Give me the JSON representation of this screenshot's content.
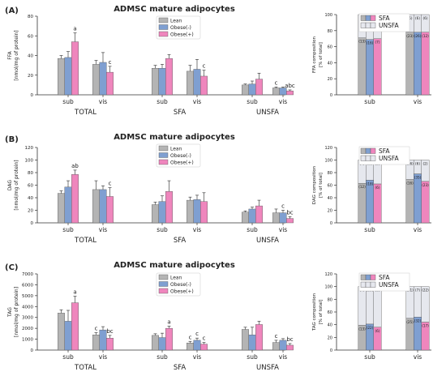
{
  "colors": {
    "lean": "#b4b4b4",
    "obese_minus": "#7f9fd1",
    "obese_plus": "#ef86bd",
    "axis": "#333333",
    "sfa_fill": "#cfd1d6",
    "unsfa_fill": "#e6e8ee"
  },
  "chart_data": [
    {
      "panel": "(A)",
      "type": "bar",
      "title": "ADMSC mature adipocytes",
      "ylabel": "FFA\n[nmol/mg of protein]",
      "ylim": [
        0,
        80
      ],
      "yticks": [
        0,
        20,
        40,
        60,
        80
      ],
      "legend": [
        "Lean",
        "Obese(-)",
        "Obese(+)"
      ],
      "legend_position": "top-center",
      "group_labels": [
        "TOTAL",
        "SFA",
        "UNSFA"
      ],
      "subgroup_labels": [
        "sub",
        "vis"
      ],
      "series": [
        {
          "name": "Lean",
          "values": [
            37,
            31,
            27,
            24,
            10,
            7
          ]
        },
        {
          "name": "Obese(-)",
          "values": [
            38,
            33,
            27,
            26,
            11,
            7
          ]
        },
        {
          "name": "Obese(+)",
          "values": [
            54,
            23,
            37,
            19,
            16,
            4
          ]
        }
      ],
      "errors": [
        [
          3,
          4,
          3,
          6,
          1,
          1
        ],
        [
          6,
          10,
          4,
          10,
          3,
          1
        ],
        [
          9,
          6,
          4,
          6,
          6,
          1
        ]
      ],
      "annotations": [
        {
          "group": 0,
          "bar": 2,
          "text": "a"
        },
        {
          "group": 1,
          "bar": 2,
          "text": "c"
        },
        {
          "group": 3,
          "bar": 2,
          "text": "c"
        },
        {
          "group": 5,
          "bar": 0,
          "text": "c"
        },
        {
          "group": 5,
          "bar": 2,
          "text": "abc"
        }
      ]
    },
    {
      "panel": "(A)",
      "type": "bar",
      "stacked": true,
      "ylabel": "FFA composition\n[% of total]",
      "ylim": [
        0,
        100
      ],
      "yticks": [
        0,
        20,
        40,
        60,
        80,
        100
      ],
      "legend": [
        "SFA",
        "UNSFA"
      ],
      "categories": [
        "sub",
        "vis"
      ],
      "sfa": [
        [
          71,
          69,
          70
        ],
        [
          78,
          78,
          78
        ]
      ],
      "labels_top": [
        [
          "(2)",
          "(6)",
          "(14)"
        ],
        [
          "(6)",
          "(6)",
          "(6)"
        ]
      ],
      "labels_bottom": [
        [
          "(13)",
          "(16)",
          "(7)"
        ],
        [
          "(23)",
          "(26)",
          "(12)"
        ]
      ]
    },
    {
      "panel": "(B)",
      "type": "bar",
      "title": "ADMSC mature adipocytes",
      "ylabel": "DAG\n[nmol/mg of protein]",
      "ylim": [
        0,
        120
      ],
      "yticks": [
        0,
        20,
        40,
        60,
        80,
        100,
        120
      ],
      "legend": [
        "Lean",
        "Obese(-)",
        "Obese(+)"
      ],
      "legend_position": "top-center",
      "group_labels": [
        "TOTAL",
        "SFA",
        "UNSFA"
      ],
      "subgroup_labels": [
        "sub",
        "vis"
      ],
      "series": [
        {
          "name": "Lean",
          "values": [
            47,
            53,
            29,
            36,
            17,
            16
          ]
        },
        {
          "name": "Obese(-)",
          "values": [
            57,
            53,
            34,
            37,
            22,
            16
          ]
        },
        {
          "name": "Obese(+)",
          "values": [
            77,
            42,
            50,
            34,
            27,
            7
          ]
        }
      ],
      "errors": [
        [
          4,
          14,
          4,
          5,
          2,
          6
        ],
        [
          10,
          6,
          9,
          7,
          3,
          4
        ],
        [
          7,
          14,
          17,
          14,
          9,
          3
        ]
      ],
      "annotations": [
        {
          "group": 0,
          "bar": 2,
          "text": "ab"
        },
        {
          "group": 1,
          "bar": 2,
          "text": "c"
        },
        {
          "group": 5,
          "bar": 1,
          "text": "c"
        },
        {
          "group": 5,
          "bar": 2,
          "text": "bc"
        }
      ]
    },
    {
      "panel": "(B)",
      "type": "bar",
      "stacked": true,
      "ylabel": "DAG composition\n[% of total]",
      "ylim": [
        0,
        120
      ],
      "yticks": [
        0,
        20,
        40,
        60,
        80,
        100,
        120
      ],
      "legend": [
        "SFA",
        "UNSFA"
      ],
      "categories": [
        "sub",
        "vis"
      ],
      "sfa": [
        [
          63,
          68,
          62
        ],
        [
          69,
          78,
          66
        ]
      ],
      "labels_top": [
        [
          "(4)",
          "(6)",
          "(3)"
        ],
        [
          "(16)",
          "(6)",
          "(2)"
        ]
      ],
      "labels_bottom": [
        [
          "(12)",
          "(18)",
          "(6)"
        ],
        [
          "(16)",
          "(35)",
          "(23)"
        ]
      ]
    },
    {
      "panel": "(C)",
      "type": "bar",
      "title": "ADMSC mature adipocytes",
      "ylabel": "TAG\n[nmol/mg of protein]",
      "ylim": [
        0,
        7000
      ],
      "yticks": [
        0,
        1000,
        2000,
        3000,
        4000,
        5000,
        6000,
        7000
      ],
      "legend": [
        "Lean",
        "Obese(-)",
        "Obese(+)"
      ],
      "legend_position": "top-center",
      "group_labels": [
        "TOTAL",
        "SFA",
        "UNSFA"
      ],
      "subgroup_labels": [
        "sub",
        "vis"
      ],
      "series": [
        {
          "name": "Lean",
          "values": [
            3400,
            1400,
            1350,
            650,
            1900,
            700
          ]
        },
        {
          "name": "Obese(-)",
          "values": [
            2650,
            1850,
            1150,
            900,
            1400,
            900
          ]
        },
        {
          "name": "Obese(+)",
          "values": [
            4350,
            1100,
            2000,
            550,
            2350,
            450
          ]
        }
      ],
      "errors": [
        [
          300,
          200,
          150,
          150,
          200,
          200
        ],
        [
          1000,
          300,
          400,
          200,
          700,
          150
        ],
        [
          600,
          250,
          200,
          150,
          300,
          150
        ]
      ],
      "annotations": [
        {
          "group": 0,
          "bar": 2,
          "text": "a"
        },
        {
          "group": 1,
          "bar": 0,
          "text": "c"
        },
        {
          "group": 1,
          "bar": 2,
          "text": "bc"
        },
        {
          "group": 2,
          "bar": 2,
          "text": "a"
        },
        {
          "group": 3,
          "bar": 0,
          "text": "c"
        },
        {
          "group": 3,
          "bar": 1,
          "text": "c"
        },
        {
          "group": 3,
          "bar": 2,
          "text": "c"
        },
        {
          "group": 5,
          "bar": 0,
          "text": "c"
        },
        {
          "group": 5,
          "bar": 2,
          "text": "bc"
        }
      ]
    },
    {
      "panel": "(C)",
      "type": "bar",
      "stacked": true,
      "ylabel": "TAG composition\n[% of total]",
      "ylim": [
        0,
        120
      ],
      "yticks": [
        0,
        20,
        40,
        60,
        80,
        100,
        120
      ],
      "legend": [
        "SFA",
        "UNSFA"
      ],
      "categories": [
        "sub",
        "vis"
      ],
      "sfa": [
        [
          39,
          41,
          36
        ],
        [
          50,
          52,
          44
        ]
      ],
      "labels_top": [
        [
          "(7)",
          "(23)",
          "(8)"
        ],
        [
          "(31)",
          "(7)",
          "(22)"
        ]
      ],
      "labels_bottom": [
        [
          "(13)",
          "(22)",
          "(6)"
        ],
        [
          "(25)",
          "(32)",
          "(17)"
        ]
      ]
    }
  ]
}
